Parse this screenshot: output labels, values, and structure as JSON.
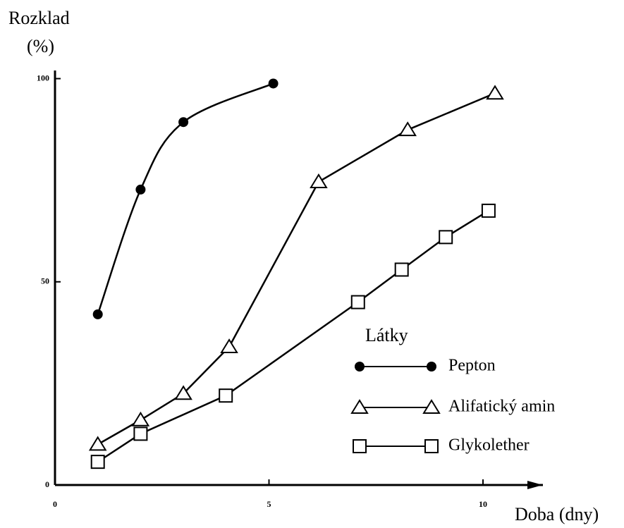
{
  "chart_data": {
    "type": "line",
    "ylabel": [
      "Rozklad",
      "(%)"
    ],
    "xlabel": "Doba (dny)",
    "legend_title": "Látky",
    "xlim": [
      0,
      11.4
    ],
    "xticks": [
      0,
      5,
      10
    ],
    "ylim": [
      0,
      102
    ],
    "yticks": [
      0,
      50,
      100
    ],
    "series": [
      {
        "name": "Pepton",
        "color": "#000000",
        "marker": "circle",
        "smooth": true,
        "x": [
          1,
          2,
          3,
          5.1
        ],
        "values": [
          42,
          72.7,
          89.3,
          98.8
        ]
      },
      {
        "name": "Alifatický amin",
        "color": "#000000",
        "marker": "triangle",
        "smooth": false,
        "x": [
          1,
          2,
          3,
          4.07,
          6.16,
          8.24,
          10.28
        ],
        "values": [
          10,
          16,
          22.5,
          34,
          74.6,
          87.4,
          96.4
        ]
      },
      {
        "name": "Glykolether",
        "color": "#000000",
        "marker": "square",
        "smooth": false,
        "x": [
          1,
          2,
          3.99,
          7.08,
          8.1,
          9.13,
          10.13
        ],
        "values": [
          5.7,
          12.6,
          22,
          45,
          53,
          61,
          67.5
        ]
      }
    ]
  }
}
